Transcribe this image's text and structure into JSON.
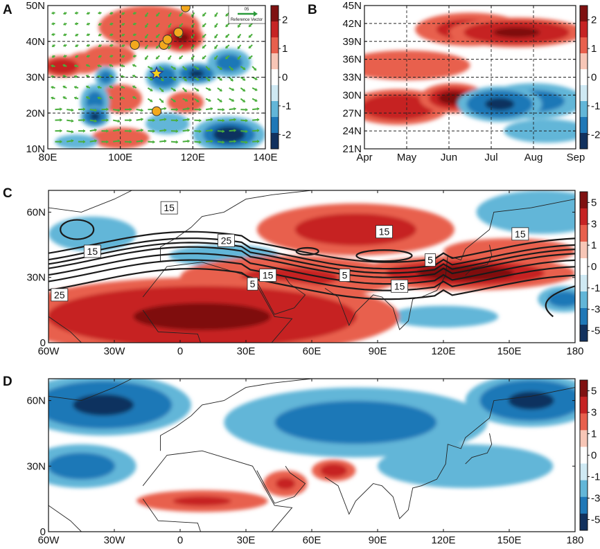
{
  "colors": {
    "pos3": "#7f1111",
    "pos2": "#c62424",
    "pos1": "#e8604d",
    "pos0": "#f7c6b6",
    "neg0": "#cfe9f3",
    "neg1": "#62b6d8",
    "neg2": "#1f78b7",
    "neg3": "#11315e",
    "wind": "#4aae3c",
    "marker": "#f3a81d",
    "star": "#f6d21a"
  },
  "chart_data": [
    {
      "panel": "A",
      "type": "heatmap",
      "title": "",
      "xlabel": "",
      "ylabel": "",
      "x_ticks": [
        "80E",
        "100E",
        "120E",
        "140E"
      ],
      "y_ticks": [
        "10N",
        "20N",
        "30N",
        "40N",
        "50N"
      ],
      "xlim": [
        80,
        140
      ],
      "ylim": [
        10,
        50
      ],
      "colorbar": {
        "ticks": [
          "2",
          "1",
          "0",
          "-1",
          "-2"
        ],
        "range": [
          -2.2,
          2.2
        ]
      },
      "reference_vector": {
        "value": "05",
        "label": "Reference Vector"
      },
      "field_blobs": [
        {
          "lon": 108,
          "lat": 44,
          "rx": 14,
          "ry": 6,
          "v": 0.6
        },
        {
          "lon": 117,
          "lat": 41,
          "rx": 6,
          "ry": 4,
          "v": 2.0
        },
        {
          "lon": 84,
          "lat": 33,
          "rx": 6,
          "ry": 3,
          "v": 1.6
        },
        {
          "lon": 90,
          "lat": 34,
          "rx": 5,
          "ry": 3,
          "v": 0.9
        },
        {
          "lon": 100,
          "lat": 24,
          "rx": 6,
          "ry": 4,
          "v": 0.9
        },
        {
          "lon": 97,
          "lat": 36,
          "rx": 7,
          "ry": 3,
          "v": 0.4
        },
        {
          "lon": 93,
          "lat": 23,
          "rx": 4,
          "ry": 5,
          "v": -1.2
        },
        {
          "lon": 93,
          "lat": 19,
          "rx": 4,
          "ry": 3,
          "v": -2.0
        },
        {
          "lon": 96,
          "lat": 30,
          "rx": 3,
          "ry": 3,
          "v": -1.3
        },
        {
          "lon": 112,
          "lat": 30,
          "rx": 5,
          "ry": 4,
          "v": -1.5
        },
        {
          "lon": 121,
          "lat": 31,
          "rx": 6,
          "ry": 3,
          "v": -2.0
        },
        {
          "lon": 130,
          "lat": 34,
          "rx": 6,
          "ry": 4,
          "v": -1.3
        },
        {
          "lon": 118,
          "lat": 23,
          "rx": 5,
          "ry": 3,
          "v": 0.7
        },
        {
          "lon": 130,
          "lat": 14,
          "rx": 10,
          "ry": 5,
          "v": -1.8
        },
        {
          "lon": 100,
          "lat": 13,
          "rx": 8,
          "ry": 3,
          "v": 0.8
        },
        {
          "lon": 88,
          "lat": 12,
          "rx": 6,
          "ry": 2,
          "v": -0.8
        },
        {
          "lon": 113,
          "lat": 17,
          "rx": 6,
          "ry": 3,
          "v": -0.4
        }
      ],
      "stations": [
        {
          "lon": 104,
          "lat": 39
        },
        {
          "lon": 112,
          "lat": 39
        },
        {
          "lon": 113,
          "lat": 40.5
        },
        {
          "lon": 116,
          "lat": 42.5
        },
        {
          "lon": 118,
          "lat": 49.5
        },
        {
          "lon": 110,
          "lat": 20.5
        }
      ],
      "star": {
        "lon": 110,
        "lat": 31
      }
    },
    {
      "panel": "B",
      "type": "heatmap",
      "title": "",
      "xlabel": "",
      "ylabel": "",
      "x_ticks": [
        "Apr",
        "May",
        "Jun",
        "Jul",
        "Aug",
        "Sep"
      ],
      "y_ticks": [
        "21N",
        "24N",
        "27N",
        "30N",
        "33N",
        "36N",
        "39N",
        "42N",
        "45N"
      ],
      "xlim": [
        0,
        5
      ],
      "ylim": [
        21,
        45
      ],
      "colorbar": {
        "ticks": [
          "2",
          "1",
          "0",
          "-1",
          "-2"
        ],
        "range": [
          -2.2,
          2.2
        ]
      },
      "field_blobs": [
        {
          "t": 3.6,
          "lat": 40.5,
          "rx": 1.6,
          "ry": 2.5,
          "v": 2.2
        },
        {
          "t": 2.5,
          "lat": 41,
          "rx": 1.3,
          "ry": 2.8,
          "v": 1.0
        },
        {
          "t": 1.0,
          "lat": 35,
          "rx": 1.5,
          "ry": 2.5,
          "v": 0.5
        },
        {
          "t": 0.8,
          "lat": 28,
          "rx": 1.2,
          "ry": 3,
          "v": 1.5
        },
        {
          "t": 2.1,
          "lat": 29.5,
          "rx": 0.8,
          "ry": 2.5,
          "v": 1.8
        },
        {
          "t": 3.2,
          "lat": 28.5,
          "rx": 1.0,
          "ry": 3,
          "v": -2.0
        },
        {
          "t": 4.0,
          "lat": 29,
          "rx": 1.2,
          "ry": 3,
          "v": -1.0
        },
        {
          "t": 4.3,
          "lat": 24,
          "rx": 1.0,
          "ry": 2,
          "v": -0.5
        }
      ]
    },
    {
      "panel": "C",
      "type": "heatmap",
      "title": "",
      "xlabel": "",
      "ylabel": "",
      "x_ticks": [
        "60W",
        "30W",
        "0",
        "30E",
        "60E",
        "90E",
        "120E",
        "150E",
        "180"
      ],
      "y_ticks": [
        "0",
        "30N",
        "60N"
      ],
      "xlim": [
        -60,
        180
      ],
      "ylim": [
        0,
        70
      ],
      "colorbar": {
        "ticks": [
          "5",
          "3",
          "1",
          "0",
          "-1",
          "-3",
          "-5"
        ],
        "range": [
          -6,
          6
        ]
      },
      "contour_labels": [
        "15",
        "25",
        "15",
        "15",
        "5",
        "15",
        "5",
        "25",
        "15",
        "5",
        "15"
      ],
      "field_blobs": [
        {
          "lon": 10,
          "lat": 12,
          "rx": 90,
          "ry": 18,
          "v": 6
        },
        {
          "lon": 50,
          "lat": 30,
          "rx": 50,
          "ry": 10,
          "v": 4
        },
        {
          "lon": 80,
          "lat": 52,
          "rx": 45,
          "ry": 12,
          "v": 3
        },
        {
          "lon": 130,
          "lat": 32,
          "rx": 50,
          "ry": 8,
          "v": 5
        },
        {
          "lon": 150,
          "lat": 42,
          "rx": 30,
          "ry": 6,
          "v": 2
        },
        {
          "lon": -40,
          "lat": 50,
          "rx": 20,
          "ry": 8,
          "v": -2
        },
        {
          "lon": 20,
          "lat": 40,
          "rx": 25,
          "ry": 5,
          "v": -2
        },
        {
          "lon": 60,
          "lat": 48,
          "rx": 12,
          "ry": 4,
          "v": -1.5
        },
        {
          "lon": 165,
          "lat": 60,
          "rx": 30,
          "ry": 10,
          "v": -2
        },
        {
          "lon": 120,
          "lat": 12,
          "rx": 25,
          "ry": 5,
          "v": -2
        },
        {
          "lon": 175,
          "lat": 20,
          "rx": 12,
          "ry": 6,
          "v": -3
        }
      ]
    },
    {
      "panel": "D",
      "type": "heatmap",
      "title": "",
      "xlabel": "",
      "ylabel": "",
      "x_ticks": [
        "60W",
        "30W",
        "0",
        "30E",
        "60E",
        "90E",
        "120E",
        "150E",
        "180"
      ],
      "y_ticks": [
        "0",
        "30N",
        "60N"
      ],
      "xlim": [
        -60,
        180
      ],
      "ylim": [
        0,
        70
      ],
      "colorbar": {
        "ticks": [
          "5",
          "3",
          "1",
          "0",
          "-1",
          "-3",
          "-5"
        ],
        "range": [
          -6,
          6
        ]
      },
      "field_blobs": [
        {
          "lon": -35,
          "lat": 58,
          "rx": 40,
          "ry": 14,
          "v": -6
        },
        {
          "lon": 160,
          "lat": 60,
          "rx": 30,
          "ry": 12,
          "v": -6
        },
        {
          "lon": 80,
          "lat": 50,
          "rx": 60,
          "ry": 16,
          "v": -3
        },
        {
          "lon": -45,
          "lat": 30,
          "rx": 25,
          "ry": 10,
          "v": -3
        },
        {
          "lon": 130,
          "lat": 30,
          "rx": 40,
          "ry": 10,
          "v": -2
        },
        {
          "lon": 10,
          "lat": 14,
          "rx": 30,
          "ry": 5,
          "v": 4
        },
        {
          "lon": 48,
          "lat": 22,
          "rx": 10,
          "ry": 6,
          "v": 4
        },
        {
          "lon": 70,
          "lat": 28,
          "rx": 10,
          "ry": 5,
          "v": 3
        },
        {
          "lon": 100,
          "lat": 8,
          "rx": 60,
          "ry": 10,
          "v": 0
        },
        {
          "lon": -40,
          "lat": 8,
          "rx": 25,
          "ry": 8,
          "v": 0
        }
      ]
    }
  ]
}
